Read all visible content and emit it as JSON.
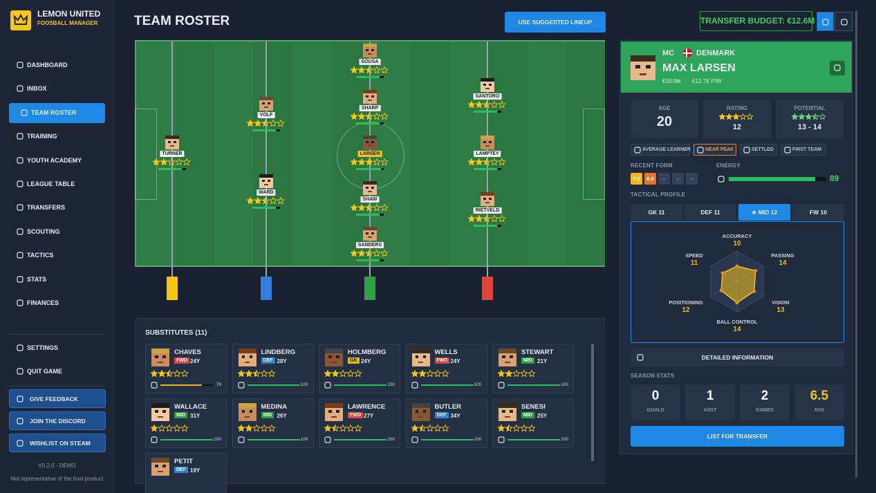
{
  "sidebar": {
    "brand": {
      "title": "LEMON UNITED",
      "subtitle": "FOOSBALL MANAGER"
    },
    "nav": [
      "DASHBOARD",
      "INBOX",
      "TEAM ROSTER",
      "TRAINING",
      "YOUTH ACADEMY",
      "LEAGUE TABLE",
      "TRANSFERS",
      "SCOUTING",
      "TACTICS",
      "STATS",
      "FINANCES"
    ],
    "active_nav": 2,
    "system": [
      "SETTINGS",
      "QUIT GAME"
    ],
    "links": [
      "GIVE FEEDBACK",
      "JOIN THE DISCORD",
      "WISHLIST ON STEAM"
    ],
    "version": "V0.2.0 - DEMO",
    "disclaimer": "Not representative of the final product"
  },
  "header": {
    "title": "TEAM ROSTER",
    "suggest_button": "USE SUGGESTED LINEUP",
    "budget": "TRANSFER BUDGET: €12.6M"
  },
  "energy_lim": [
    0,
    100
  ],
  "pitch": {
    "players": [
      {
        "name": "TURNER",
        "stars": 2,
        "energy": 85
      },
      {
        "name": "VOLF",
        "stars": 2.5,
        "energy": 85
      },
      {
        "name": "WARD",
        "stars": 2.5,
        "energy": 85
      },
      {
        "name": "SOUSA",
        "stars": 2.5,
        "energy": 85
      },
      {
        "name": "SHARP",
        "stars": 2.5,
        "energy": 85
      },
      {
        "name": "LARSEN",
        "stars": 3,
        "energy": 89
      },
      {
        "name": "SHAW",
        "stars": 2.5,
        "energy": 85
      },
      {
        "name": "SANDERS",
        "stars": 2.5,
        "energy": 85
      },
      {
        "name": "SANTORO",
        "stars": 2.5,
        "energy": 85
      },
      {
        "name": "LAMPTEY",
        "stars": 2.5,
        "energy": 85
      },
      {
        "name": "RIETVELD",
        "stars": 2.5,
        "energy": 85
      }
    ]
  },
  "substitutes": {
    "title": "SUBSTITUTES (11)",
    "players": [
      {
        "name": "CHAVES",
        "position": "FWD",
        "age": "24Y",
        "stars": 2.5,
        "energy": 79
      },
      {
        "name": "LINDBERG",
        "position": "DEF",
        "age": "28Y",
        "stars": 2.5,
        "energy": 100
      },
      {
        "name": "HOLMBERG",
        "position": "GK",
        "age": "24Y",
        "stars": 2,
        "energy": 100
      },
      {
        "name": "WELLS",
        "position": "FWD",
        "age": "24Y",
        "stars": 2,
        "energy": 100
      },
      {
        "name": "STEWART",
        "position": "MID",
        "age": "21Y",
        "stars": 2,
        "energy": 100
      },
      {
        "name": "WALLACE",
        "position": "MID",
        "age": "31Y",
        "stars": 1,
        "energy": 100
      },
      {
        "name": "MEDINA",
        "position": "MID",
        "age": "26Y",
        "stars": 2,
        "energy": 100
      },
      {
        "name": "LAWRENCE",
        "position": "FWD",
        "age": "27Y",
        "stars": 1.5,
        "energy": 100
      },
      {
        "name": "BUTLER",
        "position": "DEF",
        "age": "34Y",
        "stars": 1.5,
        "energy": 100
      },
      {
        "name": "SENESI",
        "position": "MID",
        "age": "25Y",
        "stars": 1.5,
        "energy": 100
      },
      {
        "name": "PETIT",
        "position": "DEF",
        "age": "19Y"
      }
    ]
  },
  "selected": {
    "role": "MC",
    "nation": "DENMARK",
    "name": "MAX LARSEN",
    "value": "€10.0M",
    "wage": "€12.7K P/W",
    "age": {
      "label": "AGE",
      "value": 20
    },
    "rating": {
      "label": "RATING",
      "stars": 3,
      "value": 12
    },
    "potential": {
      "label": "POTENTIAL",
      "stars": 3.5,
      "range": "13 - 14"
    },
    "tags": [
      "AVERAGE LEARNER",
      "NEAR PEAK",
      "SETTLED",
      "FIRST TEAM"
    ],
    "recent_form": {
      "label": "RECENT FORM",
      "values": [
        7,
        6,
        null,
        null,
        null
      ],
      "value_labels": [
        "7.0",
        "6.0",
        "-",
        "-",
        "-"
      ]
    },
    "energy": {
      "label": "ENERGY",
      "value": 89
    },
    "tactical_profile": {
      "label": "TACTICAL PROFILE",
      "tabs": [
        "GK 11",
        "DEF 11",
        "★ MID 12",
        "FW 10"
      ],
      "active_tab": 2,
      "radar": {
        "type": "radar",
        "categories": [
          "ACCURACY",
          "PASSING",
          "VISION",
          "BALL CONTROL",
          "POSITIONING",
          "SPEED"
        ],
        "values": [
          10,
          14,
          13,
          14,
          12,
          11
        ],
        "rlim": [
          0,
          20
        ]
      }
    },
    "details_button": "DETAILED INFORMATION",
    "season_stats": {
      "label": "SEASON STATS",
      "items": [
        {
          "label": "GOALS",
          "value": 0
        },
        {
          "label": "ASST",
          "value": 1
        },
        {
          "label": "GAMES",
          "value": 2
        },
        {
          "label": "AVG",
          "value": 6.5
        }
      ]
    },
    "transfer_button": "LIST FOR TRANSFER"
  }
}
